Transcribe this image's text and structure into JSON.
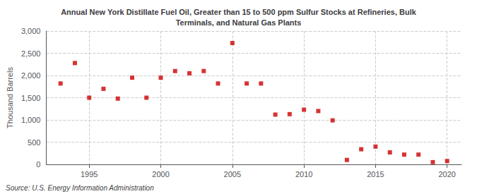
{
  "chart_data": {
    "type": "scatter",
    "title": "Annual New York Distillate Fuel Oil, Greater than 15 to 500 ppm Sulfur Stocks at Refineries, Bulk\nTerminals, and Natural Gas Plants",
    "y_label": "Thousand Barrels",
    "annotations": [
      "Source: U.S. Energy Information Administration"
    ],
    "x": [
      1993,
      1994,
      1995,
      1996,
      1997,
      1998,
      1999,
      2000,
      2001,
      2002,
      2003,
      2004,
      2005,
      2006,
      2007,
      2008,
      2009,
      2010,
      2011,
      2012,
      2013,
      2014,
      2015,
      2016,
      2017,
      2018,
      2019,
      2020
    ],
    "values": [
      1820,
      2280,
      1500,
      1700,
      1480,
      1950,
      1500,
      1950,
      2100,
      2050,
      2100,
      1820,
      2730,
      1820,
      1820,
      1120,
      1130,
      1230,
      1200,
      990,
      100,
      340,
      400,
      270,
      220,
      220,
      50,
      75
    ],
    "color": "#cc0000",
    "marker": "square",
    "xlim": [
      1992,
      2021
    ],
    "xticks": [
      1995,
      2000,
      2005,
      2010,
      2015,
      2020
    ],
    "ylim": [
      0,
      3000
    ],
    "yticks": [
      0,
      500,
      {
        "value": 1000,
        "label": "1,000"
      },
      {
        "value": 1500,
        "label": "1,500"
      },
      {
        "value": 2000,
        "label": "2,000"
      },
      {
        "value": 2500,
        "label": "2,500"
      },
      {
        "value": 3000,
        "label": "3,000"
      }
    ],
    "grid": true
  }
}
